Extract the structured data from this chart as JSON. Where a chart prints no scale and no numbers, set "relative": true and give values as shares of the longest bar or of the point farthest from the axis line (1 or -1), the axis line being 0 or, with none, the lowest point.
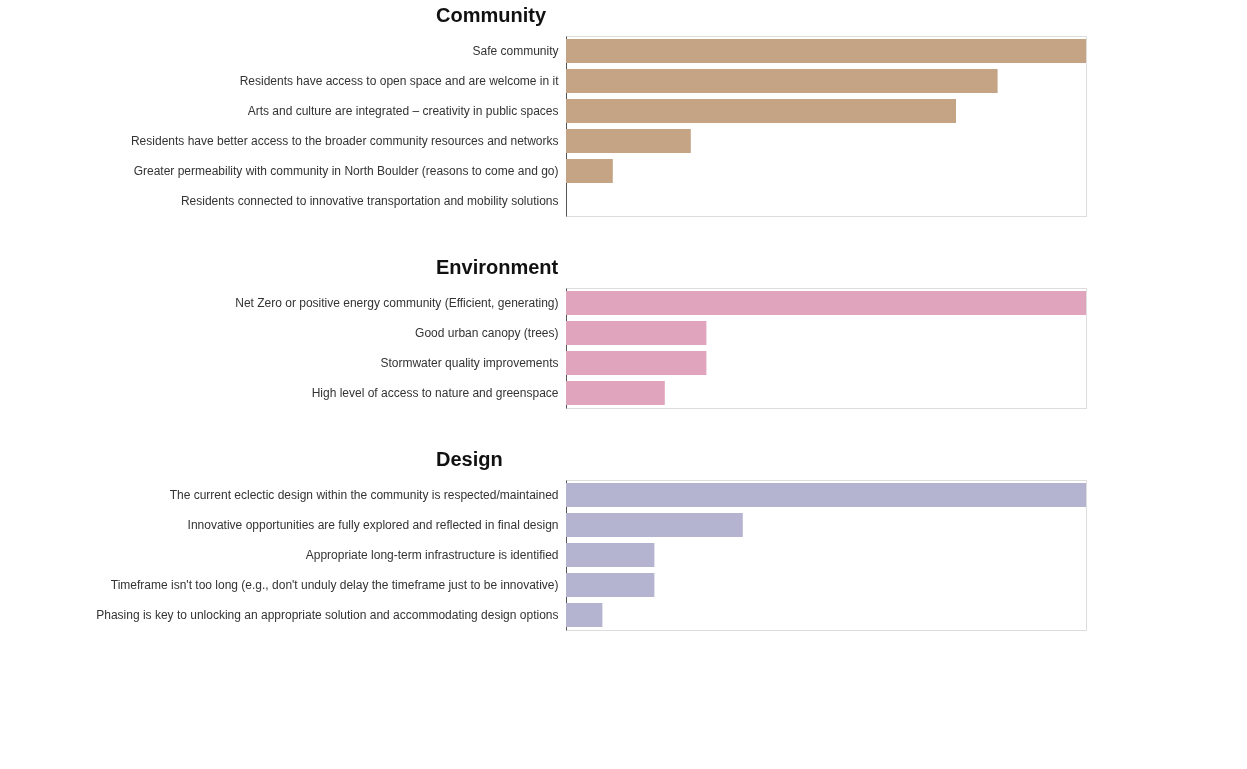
{
  "chart_data": [
    {
      "type": "bar",
      "title": "Community",
      "orientation": "horizontal",
      "relative": true,
      "color": "#c4a484",
      "categories": [
        "Safe community",
        "Residents have access to open space and are welcome in it",
        "Arts and culture are integrated – creativity in public spaces",
        "Residents have better access to the broader community resources and networks",
        "Greater permeability with community in North Boulder (reasons to come and go)",
        "Residents connected to innovative transportation and mobility solutions"
      ],
      "values": [
        1,
        0.83,
        0.75,
        0.24,
        0.09,
        0
      ]
    },
    {
      "type": "bar",
      "title": "Environment",
      "orientation": "horizontal",
      "relative": true,
      "color": "#e0a4bc",
      "categories": [
        "Net Zero or positive energy community (Efficient, generating)",
        "Good urban canopy (trees)",
        "Stormwater quality improvements",
        "High level of access to nature and greenspace"
      ],
      "values": [
        1,
        0.27,
        0.27,
        0.19
      ]
    },
    {
      "type": "bar",
      "title": "Design",
      "orientation": "horizontal",
      "relative": true,
      "color": "#b4b4d0",
      "categories": [
        "The current eclectic design within the community is respected/maintained",
        "Innovative opportunities are fully explored and reflected in final design",
        "Appropriate long-term infrastructure is identified",
        "Timeframe isn't too long (e.g., don't unduly delay the timeframe just to be innovative)",
        "Phasing is key to unlocking an appropriate solution and accommodating design options"
      ],
      "values": [
        1,
        0.34,
        0.17,
        0.17,
        0.07
      ]
    }
  ]
}
